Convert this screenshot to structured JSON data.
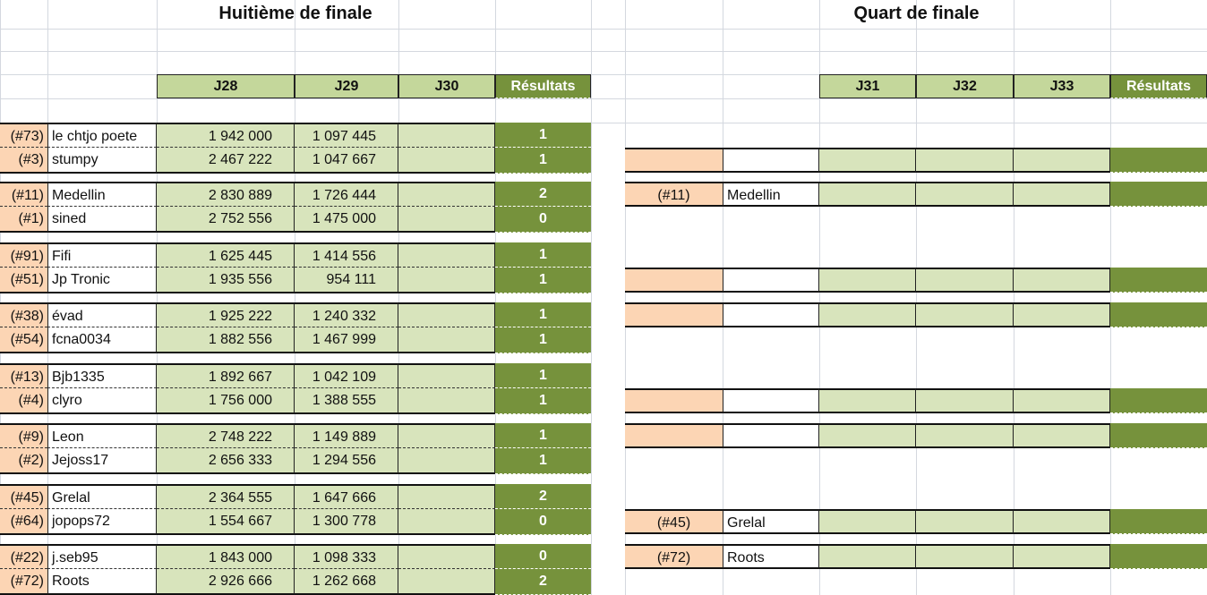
{
  "left": {
    "title": "Huitième de finale",
    "headers": [
      "J28",
      "J29",
      "J30",
      "Résultats"
    ],
    "rows": [
      {
        "seed": "(#73)",
        "name": "le chtjo poete",
        "j28": "1 942 000",
        "j29": "1 097 445",
        "j30": "",
        "result": "1"
      },
      {
        "seed": "(#3)",
        "name": "stumpy",
        "j28": "2 467 222",
        "j29": "1 047 667",
        "j30": "",
        "result": "1"
      },
      {
        "seed": "(#11)",
        "name": "Medellin",
        "j28": "2 830 889",
        "j29": "1 726 444",
        "j30": "",
        "result": "2"
      },
      {
        "seed": "(#1)",
        "name": "sined",
        "j28": "2 752 556",
        "j29": "1 475 000",
        "j30": "",
        "result": "0"
      },
      {
        "seed": "(#91)",
        "name": "Fifi",
        "j28": "1 625 445",
        "j29": "1 414 556",
        "j30": "",
        "result": "1"
      },
      {
        "seed": "(#51)",
        "name": "Jp Tronic",
        "j28": "1 935 556",
        "j29": "954 111",
        "j30": "",
        "result": "1"
      },
      {
        "seed": "(#38)",
        "name": "évad",
        "j28": "1 925 222",
        "j29": "1 240 332",
        "j30": "",
        "result": "1"
      },
      {
        "seed": "(#54)",
        "name": "fcna0034",
        "j28": "1 882 556",
        "j29": "1 467 999",
        "j30": "",
        "result": "1"
      },
      {
        "seed": "(#13)",
        "name": "Bjb1335",
        "j28": "1 892 667",
        "j29": "1 042 109",
        "j30": "",
        "result": "1"
      },
      {
        "seed": "(#4)",
        "name": "clyro",
        "j28": "1 756 000",
        "j29": "1 388 555",
        "j30": "",
        "result": "1"
      },
      {
        "seed": "(#9)",
        "name": "Leon",
        "j28": "2 748 222",
        "j29": "1 149 889",
        "j30": "",
        "result": "1"
      },
      {
        "seed": "(#2)",
        "name": "Jejoss17",
        "j28": "2 656 333",
        "j29": "1 294 556",
        "j30": "",
        "result": "1"
      },
      {
        "seed": "(#45)",
        "name": "Grelal",
        "j28": "2 364 555",
        "j29": "1 647 666",
        "j30": "",
        "result": "2"
      },
      {
        "seed": "(#64)",
        "name": "jopops72",
        "j28": "1 554 667",
        "j29": "1 300 778",
        "j30": "",
        "result": "0"
      },
      {
        "seed": "(#22)",
        "name": "j.seb95",
        "j28": "1 843 000",
        "j29": "1 098 333",
        "j30": "",
        "result": "0"
      },
      {
        "seed": "(#72)",
        "name": "Roots",
        "j28": "2 926 666",
        "j29": "1 262 668",
        "j30": "",
        "result": "2"
      }
    ]
  },
  "right": {
    "title": "Quart de finale",
    "headers": [
      "J31",
      "J32",
      "J33",
      "Résultats"
    ],
    "rows": [
      {
        "slot": 1,
        "seed": "",
        "name": ""
      },
      {
        "slot": 2,
        "seed": "(#11)",
        "name": "Medellin"
      },
      {
        "slot": 5,
        "seed": "",
        "name": ""
      },
      {
        "slot": 6,
        "seed": "",
        "name": ""
      },
      {
        "slot": 9,
        "seed": "",
        "name": ""
      },
      {
        "slot": 10,
        "seed": "",
        "name": ""
      },
      {
        "slot": 13,
        "seed": "(#45)",
        "name": "Grelal"
      },
      {
        "slot": 14,
        "seed": "(#72)",
        "name": "Roots"
      }
    ]
  },
  "colors": {
    "seed": "#fcd5b4",
    "score": "#d8e4bc",
    "header": "#c4d79b",
    "result": "#76923c"
  }
}
